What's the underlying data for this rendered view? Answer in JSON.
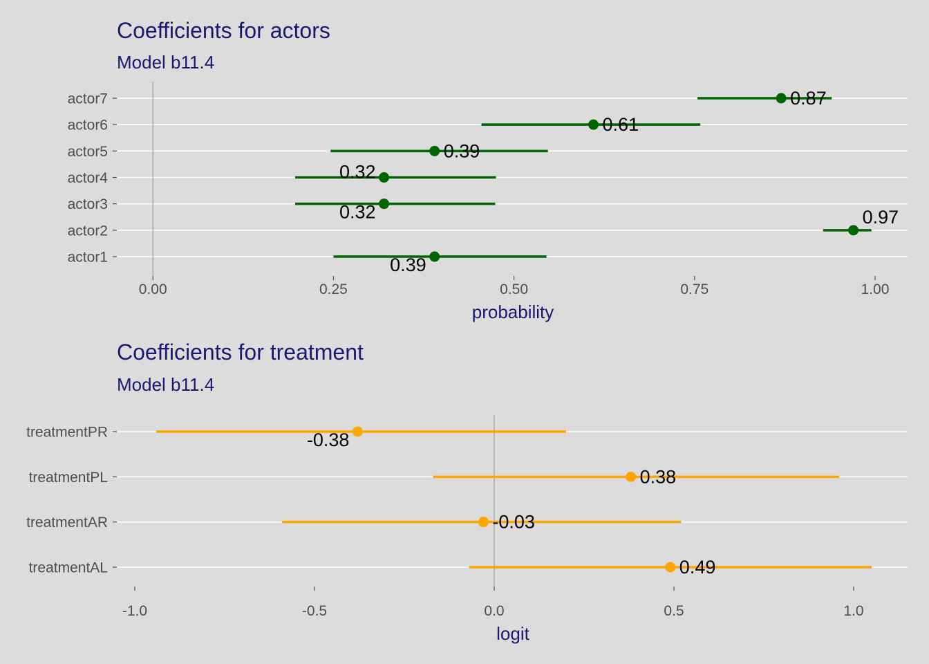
{
  "colors": {
    "background": "#dcdcdc",
    "title": "#191970",
    "tick_text": "#4d4d4d",
    "gridline": "#ffffff",
    "reference_line": "#999999",
    "actors_series": "#006400",
    "treatment_series": "#ffa500",
    "value_label": "#000000"
  },
  "chart_data": [
    {
      "type": "scatter",
      "title": "Coefficients for actors",
      "subtitle": "Model b11.4",
      "xlabel": "probability",
      "ylabel": "",
      "xlim": [
        -0.05,
        1.045
      ],
      "x_ticks": [
        0,
        0.25,
        0.5,
        0.75,
        1
      ],
      "x_tick_labels": [
        "0.00",
        "0.25",
        "0.50",
        "0.75",
        "1.00"
      ],
      "reference_line_x": 0,
      "grid": "horizontal",
      "legend": "none",
      "terms": [
        "actor7",
        "actor6",
        "actor5",
        "actor4",
        "actor3",
        "actor2",
        "actor1"
      ],
      "estimates": [
        0.87,
        0.61,
        0.39,
        0.32,
        0.32,
        0.97,
        0.39
      ],
      "conf_low": [
        0.754,
        0.455,
        0.246,
        0.197,
        0.197,
        0.928,
        0.25
      ],
      "conf_high": [
        0.94,
        0.758,
        0.547,
        0.475,
        0.474,
        0.995,
        0.545
      ],
      "value_labels": [
        "0.87",
        "0.61",
        "0.39",
        "0.32",
        "0.32",
        "0.97",
        "0.39"
      ],
      "label_placement": [
        "right",
        "right",
        "right",
        "left",
        "below-left",
        "right",
        "below-left"
      ]
    },
    {
      "type": "scatter",
      "title": "Coefficients for treatment",
      "subtitle": "Model b11.4",
      "xlabel": "logit",
      "ylabel": "",
      "xlim": [
        -1.05,
        1.15
      ],
      "x_ticks": [
        -1,
        -0.5,
        0,
        0.5,
        1
      ],
      "x_tick_labels": [
        "-1.0",
        "-0.5",
        "0.0",
        "0.5",
        "1.0"
      ],
      "reference_line_x": 0,
      "grid": "horizontal",
      "legend": "none",
      "terms": [
        "treatmentPR",
        "treatmentPL",
        "treatmentAR",
        "treatmentAL"
      ],
      "estimates": [
        -0.38,
        0.38,
        -0.03,
        0.49
      ],
      "conf_low": [
        -0.94,
        -0.17,
        -0.59,
        -0.07
      ],
      "conf_high": [
        0.2,
        0.96,
        0.52,
        1.05
      ],
      "value_labels": [
        "-0.38",
        "0.38",
        "-0.03",
        "0.49"
      ],
      "label_placement": [
        "below-left",
        "right",
        "right",
        "right"
      ]
    }
  ]
}
